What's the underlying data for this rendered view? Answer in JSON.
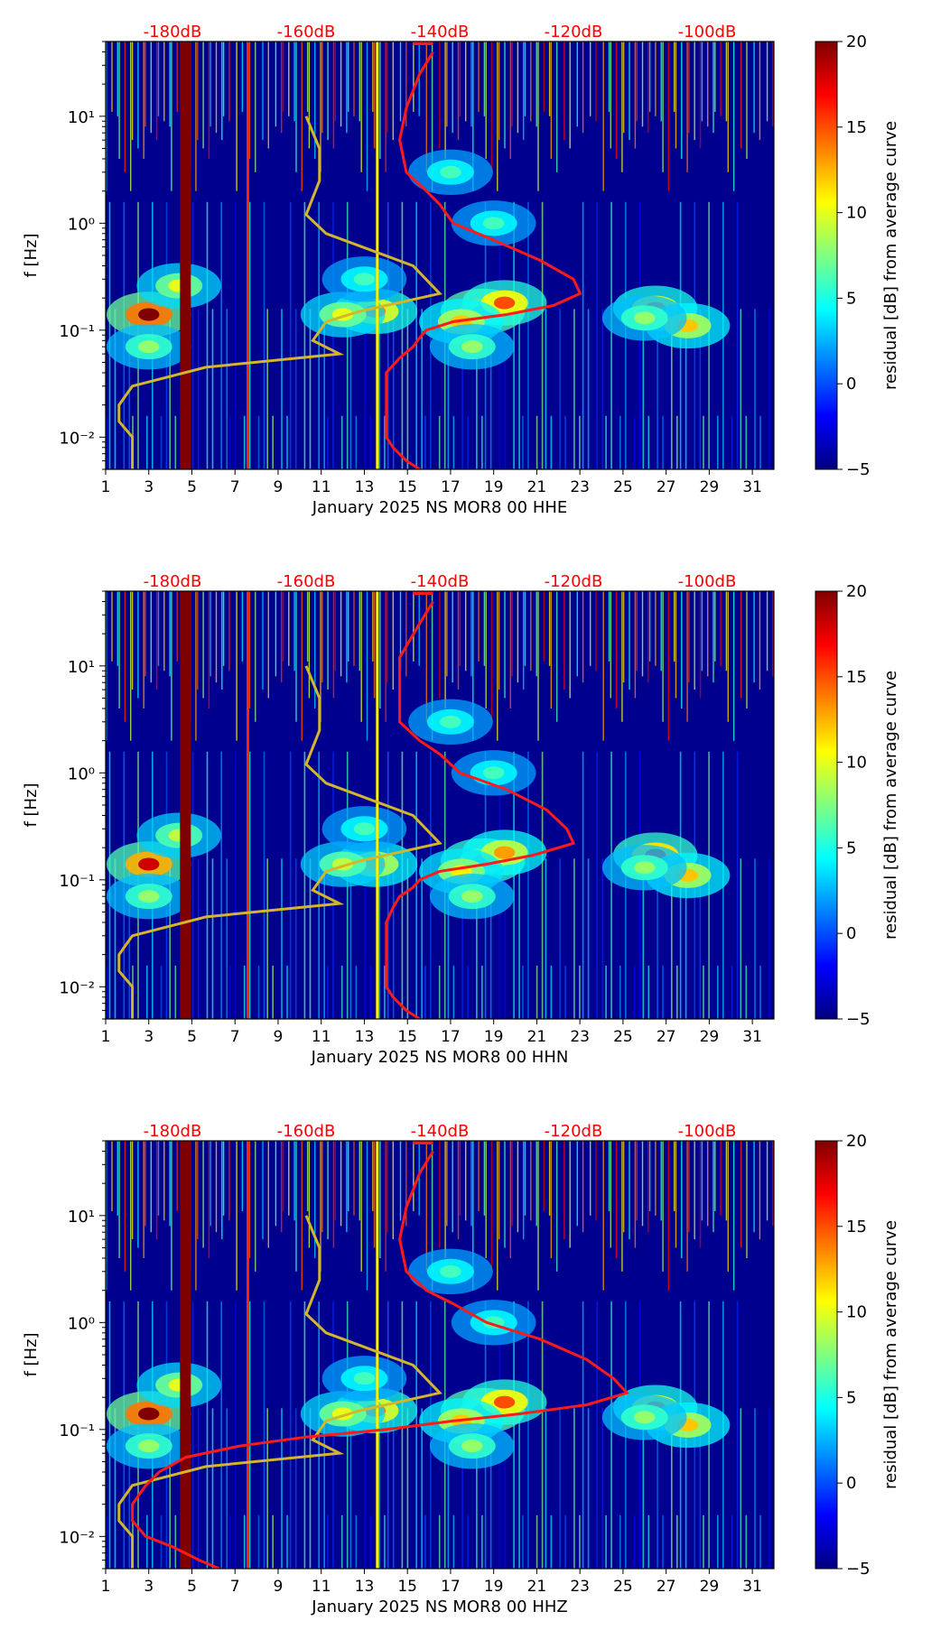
{
  "colors": {
    "cmap": [
      "#00007f",
      "#0000ff",
      "#0080ff",
      "#00ffff",
      "#80ff80",
      "#ffff00",
      "#ff8000",
      "#ff0000",
      "#7f0000"
    ],
    "background": "#00008f",
    "noise_model": "#d4b62a",
    "psd_curve": "#ff1a1a",
    "top_axis_text": "#ff0000",
    "axis": "#000000",
    "band": "#7f0000"
  },
  "colorbar": {
    "label": "residual [dB] from average curve",
    "min": -5,
    "max": 20,
    "ticks": [
      20,
      15,
      10,
      5,
      0,
      -5
    ],
    "tick_labels": [
      "20",
      "15",
      "10",
      "5",
      "0",
      "−5"
    ]
  },
  "chart_data": [
    {
      "type": "heatmap",
      "title": "",
      "xlabel": "January 2025 NS MOR8 00 HHE",
      "ylabel": "f [Hz]",
      "xlim": [
        1,
        32
      ],
      "ylim": [
        0.005,
        50
      ],
      "yscale": "log",
      "x_ticks": [
        1,
        3,
        5,
        7,
        9,
        11,
        13,
        15,
        17,
        19,
        21,
        23,
        25,
        27,
        29,
        31
      ],
      "x_tick_labels": [
        "1",
        "3",
        "5",
        "7",
        "9",
        "11",
        "13",
        "15",
        "17",
        "19",
        "21",
        "23",
        "25",
        "27",
        "29",
        "31"
      ],
      "y_ticks": [
        10,
        1,
        0.1,
        0.01
      ],
      "y_tick_labels": [
        "10¹",
        "10⁰",
        "10⁻¹",
        "10⁻²"
      ],
      "top_axis": {
        "range_db": [
          -190,
          -90
        ],
        "ticks": [
          -180,
          -160,
          -140,
          -120,
          -100
        ],
        "tick_labels": [
          "-180dB",
          "-160dB",
          "-140dB",
          "-120dB",
          "-100dB"
        ]
      },
      "hot_spots": [
        [
          3,
          0.14,
          20
        ],
        [
          4.4,
          0.26,
          10
        ],
        [
          3,
          0.07,
          8
        ],
        [
          13.5,
          0.15,
          14
        ],
        [
          12,
          0.14,
          10
        ],
        [
          13,
          0.3,
          6
        ],
        [
          18.5,
          0.15,
          18
        ],
        [
          19.5,
          0.18,
          15
        ],
        [
          17.5,
          0.12,
          12
        ],
        [
          18,
          0.07,
          8
        ],
        [
          26.5,
          0.16,
          14
        ],
        [
          28,
          0.11,
          12
        ],
        [
          26,
          0.13,
          8
        ],
        [
          17,
          3,
          6
        ],
        [
          19,
          1,
          6
        ]
      ],
      "stripes": [
        [
          4.7,
          20
        ],
        [
          7.6,
          16
        ],
        [
          13.6,
          11
        ]
      ],
      "noise_model": [
        [
          -160,
          10
        ],
        [
          -158,
          5
        ],
        [
          -158,
          2.5
        ],
        [
          -160,
          1.2
        ],
        [
          -157,
          0.8
        ],
        [
          -144,
          0.4
        ],
        [
          -140,
          0.22
        ],
        [
          -152,
          0.15
        ],
        [
          -157,
          0.12
        ],
        [
          -159,
          0.08
        ],
        [
          -155,
          0.06
        ],
        [
          -175,
          0.045
        ],
        [
          -186,
          0.03
        ],
        [
          -188,
          0.02
        ],
        [
          -188,
          0.014
        ],
        [
          -186,
          0.01
        ],
        [
          -186,
          0.008
        ],
        [
          -186,
          0.006
        ],
        [
          -186,
          0.005
        ]
      ],
      "psd_curve": [
        [
          -141,
          40
        ],
        [
          -143,
          25
        ],
        [
          -145,
          12
        ],
        [
          -146,
          6
        ],
        [
          -145,
          3
        ],
        [
          -142,
          2
        ],
        [
          -140,
          1.5
        ],
        [
          -138,
          1
        ],
        [
          -132,
          0.7
        ],
        [
          -125,
          0.45
        ],
        [
          -120,
          0.3
        ],
        [
          -119,
          0.22
        ],
        [
          -123,
          0.17
        ],
        [
          -130,
          0.14
        ],
        [
          -138,
          0.12
        ],
        [
          -142,
          0.1
        ],
        [
          -143,
          0.085
        ],
        [
          -144,
          0.07
        ],
        [
          -146,
          0.055
        ],
        [
          -148,
          0.04
        ],
        [
          -148,
          0.03
        ],
        [
          -148,
          0.02
        ],
        [
          -148,
          0.014
        ],
        [
          -148,
          0.01
        ],
        [
          -147,
          0.008
        ],
        [
          -145,
          0.006
        ],
        [
          -143,
          0.005
        ]
      ]
    },
    {
      "type": "heatmap",
      "title": "",
      "xlabel": "January 2025 NS MOR8 00 HHN",
      "ylabel": "f [Hz]",
      "xlim": [
        1,
        32
      ],
      "ylim": [
        0.005,
        50
      ],
      "yscale": "log",
      "x_ticks": [
        1,
        3,
        5,
        7,
        9,
        11,
        13,
        15,
        17,
        19,
        21,
        23,
        25,
        27,
        29,
        31
      ],
      "x_tick_labels": [
        "1",
        "3",
        "5",
        "7",
        "9",
        "11",
        "13",
        "15",
        "17",
        "19",
        "21",
        "23",
        "25",
        "27",
        "29",
        "31"
      ],
      "y_ticks": [
        10,
        1,
        0.1,
        0.01
      ],
      "y_tick_labels": [
        "10¹",
        "10⁰",
        "10⁻¹",
        "10⁻²"
      ],
      "top_axis": {
        "range_db": [
          -190,
          -90
        ],
        "ticks": [
          -180,
          -160,
          -140,
          -120,
          -100
        ],
        "tick_labels": [
          "-180dB",
          "-160dB",
          "-140dB",
          "-120dB",
          "-100dB"
        ]
      },
      "hot_spots": [
        [
          3,
          0.14,
          18
        ],
        [
          4.4,
          0.26,
          9
        ],
        [
          3,
          0.07,
          8
        ],
        [
          13.5,
          0.14,
          12
        ],
        [
          12,
          0.14,
          9
        ],
        [
          13,
          0.3,
          6
        ],
        [
          18.5,
          0.15,
          16
        ],
        [
          19.5,
          0.18,
          13
        ],
        [
          17.5,
          0.12,
          11
        ],
        [
          18,
          0.07,
          8
        ],
        [
          26.5,
          0.17,
          16
        ],
        [
          28,
          0.11,
          12
        ],
        [
          26,
          0.13,
          8
        ],
        [
          17,
          3,
          6
        ],
        [
          19,
          1,
          6
        ]
      ],
      "stripes": [
        [
          4.7,
          20
        ],
        [
          7.6,
          16
        ],
        [
          13.6,
          11
        ]
      ],
      "noise_model": [
        [
          -160,
          10
        ],
        [
          -158,
          5
        ],
        [
          -158,
          2.5
        ],
        [
          -160,
          1.2
        ],
        [
          -157,
          0.8
        ],
        [
          -144,
          0.4
        ],
        [
          -140,
          0.22
        ],
        [
          -152,
          0.15
        ],
        [
          -157,
          0.12
        ],
        [
          -159,
          0.08
        ],
        [
          -155,
          0.06
        ],
        [
          -175,
          0.045
        ],
        [
          -186,
          0.03
        ],
        [
          -188,
          0.02
        ],
        [
          -188,
          0.014
        ],
        [
          -186,
          0.01
        ],
        [
          -186,
          0.008
        ],
        [
          -186,
          0.006
        ],
        [
          -186,
          0.005
        ]
      ],
      "psd_curve": [
        [
          -141,
          40
        ],
        [
          -143,
          25
        ],
        [
          -146,
          12
        ],
        [
          -146,
          6
        ],
        [
          -146,
          3
        ],
        [
          -143,
          2
        ],
        [
          -140,
          1.5
        ],
        [
          -137,
          1
        ],
        [
          -130,
          0.7
        ],
        [
          -124,
          0.45
        ],
        [
          -121,
          0.3
        ],
        [
          -120,
          0.22
        ],
        [
          -126,
          0.17
        ],
        [
          -133,
          0.14
        ],
        [
          -140,
          0.12
        ],
        [
          -143,
          0.1
        ],
        [
          -144,
          0.085
        ],
        [
          -146,
          0.07
        ],
        [
          -147,
          0.055
        ],
        [
          -148,
          0.04
        ],
        [
          -148,
          0.03
        ],
        [
          -148,
          0.02
        ],
        [
          -148,
          0.014
        ],
        [
          -148,
          0.01
        ],
        [
          -147,
          0.008
        ],
        [
          -145,
          0.006
        ],
        [
          -143,
          0.005
        ]
      ]
    },
    {
      "type": "heatmap",
      "title": "",
      "xlabel": "January 2025 NS MOR8 00 HHZ",
      "ylabel": "f [Hz]",
      "xlim": [
        1,
        32
      ],
      "ylim": [
        0.005,
        50
      ],
      "yscale": "log",
      "x_ticks": [
        1,
        3,
        5,
        7,
        9,
        11,
        13,
        15,
        17,
        19,
        21,
        23,
        25,
        27,
        29,
        31
      ],
      "x_tick_labels": [
        "1",
        "3",
        "5",
        "7",
        "9",
        "11",
        "13",
        "15",
        "17",
        "19",
        "21",
        "23",
        "25",
        "27",
        "29",
        "31"
      ],
      "y_ticks": [
        10,
        1,
        0.1,
        0.01
      ],
      "y_tick_labels": [
        "10¹",
        "10⁰",
        "10⁻¹",
        "10⁻²"
      ],
      "top_axis": {
        "range_db": [
          -190,
          -90
        ],
        "ticks": [
          -180,
          -160,
          -140,
          -120,
          -100
        ],
        "tick_labels": [
          "-180dB",
          "-160dB",
          "-140dB",
          "-120dB",
          "-100dB"
        ]
      },
      "hot_spots": [
        [
          3,
          0.14,
          20
        ],
        [
          4.4,
          0.26,
          10
        ],
        [
          3,
          0.07,
          8
        ],
        [
          13.5,
          0.15,
          14
        ],
        [
          12,
          0.14,
          10
        ],
        [
          13,
          0.3,
          6
        ],
        [
          18.5,
          0.15,
          18
        ],
        [
          19.5,
          0.18,
          15
        ],
        [
          17.5,
          0.12,
          12
        ],
        [
          18,
          0.07,
          8
        ],
        [
          26.5,
          0.16,
          14
        ],
        [
          28,
          0.11,
          12
        ],
        [
          26,
          0.13,
          8
        ],
        [
          17,
          3,
          6
        ],
        [
          19,
          1,
          6
        ]
      ],
      "stripes": [
        [
          4.7,
          20
        ],
        [
          7.6,
          16
        ],
        [
          13.6,
          11
        ]
      ],
      "noise_model": [
        [
          -160,
          10
        ],
        [
          -158,
          5
        ],
        [
          -158,
          2.5
        ],
        [
          -160,
          1.2
        ],
        [
          -157,
          0.8
        ],
        [
          -144,
          0.4
        ],
        [
          -140,
          0.22
        ],
        [
          -152,
          0.15
        ],
        [
          -157,
          0.12
        ],
        [
          -159,
          0.08
        ],
        [
          -155,
          0.06
        ],
        [
          -175,
          0.045
        ],
        [
          -186,
          0.03
        ],
        [
          -188,
          0.02
        ],
        [
          -188,
          0.014
        ],
        [
          -186,
          0.01
        ],
        [
          -186,
          0.008
        ],
        [
          -186,
          0.006
        ],
        [
          -186,
          0.005
        ]
      ],
      "psd_curve": [
        [
          -141,
          40
        ],
        [
          -143,
          25
        ],
        [
          -145,
          12
        ],
        [
          -146,
          6
        ],
        [
          -145,
          3
        ],
        [
          -142,
          2
        ],
        [
          -138,
          1.5
        ],
        [
          -133,
          1
        ],
        [
          -125,
          0.7
        ],
        [
          -118,
          0.45
        ],
        [
          -114,
          0.3
        ],
        [
          -112,
          0.22
        ],
        [
          -118,
          0.17
        ],
        [
          -128,
          0.14
        ],
        [
          -138,
          0.12
        ],
        [
          -148,
          0.1
        ],
        [
          -160,
          0.085
        ],
        [
          -170,
          0.07
        ],
        [
          -178,
          0.055
        ],
        [
          -182,
          0.04
        ],
        [
          -184,
          0.03
        ],
        [
          -186,
          0.02
        ],
        [
          -186,
          0.014
        ],
        [
          -184,
          0.01
        ],
        [
          -180,
          0.008
        ],
        [
          -176,
          0.006
        ],
        [
          -173,
          0.005
        ]
      ]
    }
  ]
}
